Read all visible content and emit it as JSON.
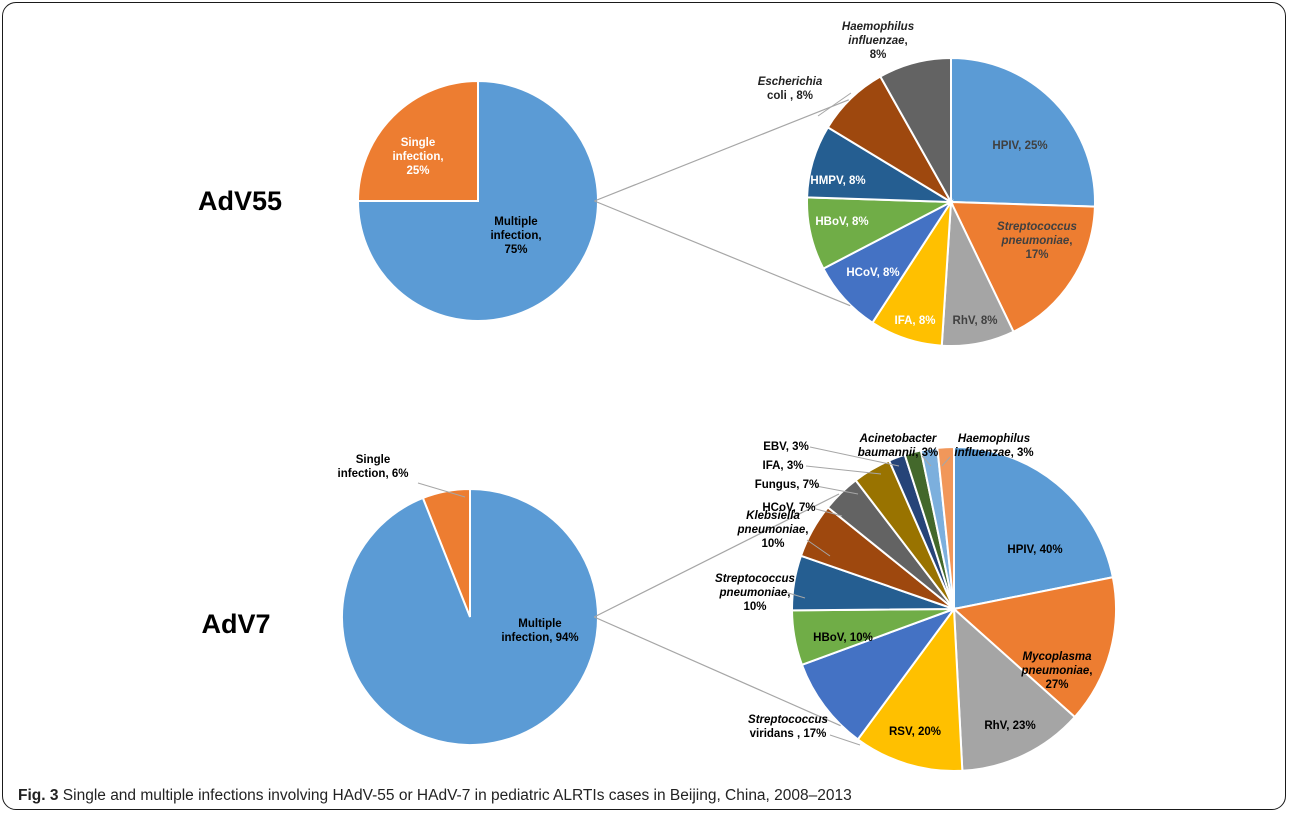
{
  "caption": {
    "label": "Fig. 3",
    "text": "Single and multiple infections involving HAdV-55 or HAdV-7 in pediatric ALRTIs cases in Beijing, China, 2008–2013"
  },
  "colors": {
    "blue": "#5b9bd5",
    "orange": "#ed7d31",
    "gray": "#a5a5a5",
    "gold": "#ffc000",
    "royal": "#4472c4",
    "green": "#70ad47",
    "navy": "#255e91",
    "brown": "#9e480e",
    "darkgray": "#636363",
    "olive": "#997300",
    "darknavy": "#264478",
    "darkgreen": "#43682b",
    "lightblue": "#7cafdd",
    "lightorange": "#f1975a"
  },
  "chart_data": [
    {
      "type": "pie",
      "title": "AdV55",
      "slices": [
        {
          "name": "Single infection",
          "value": 25,
          "label": "Single infection, 25%",
          "color": "orange"
        },
        {
          "name": "Multiple infection",
          "value": 75,
          "label": "Multiple infection, 75%",
          "color": "blue"
        }
      ]
    },
    {
      "type": "pie",
      "title": "",
      "breakdown_of": "Multiple infection",
      "slices": [
        {
          "name": "HPIV",
          "value": 25,
          "label": "HPIV, 25%",
          "color": "blue"
        },
        {
          "name": "Streptococcus pneumoniae",
          "value": 17,
          "label": "Streptococcus pneumoniae, 17%",
          "color": "orange"
        },
        {
          "name": "RhV",
          "value": 8,
          "label": "RhV, 8%",
          "color": "gray"
        },
        {
          "name": "IFA",
          "value": 8,
          "label": "IFA, 8%",
          "color": "gold"
        },
        {
          "name": "HCoV",
          "value": 8,
          "label": "HCoV, 8%",
          "color": "royal"
        },
        {
          "name": "HBoV",
          "value": 8,
          "label": "HBoV, 8%",
          "color": "green"
        },
        {
          "name": "HMPV",
          "value": 8,
          "label": "HMPV, 8%",
          "color": "navy"
        },
        {
          "name": "Escherichia coli",
          "value": 8,
          "label": "Escherichia coli , 8%",
          "color": "brown"
        },
        {
          "name": "Haemophilus influenzae",
          "value": 8,
          "label": "Haemophilus influenzae, 8%",
          "color": "darkgray"
        }
      ]
    },
    {
      "type": "pie",
      "title": "AdV7",
      "slices": [
        {
          "name": "Single infection",
          "value": 6,
          "label": "Single infection, 6%",
          "color": "orange"
        },
        {
          "name": "Multiple infection",
          "value": 94,
          "label": "Multiple infection, 94%",
          "color": "blue"
        }
      ]
    },
    {
      "type": "pie",
      "title": "",
      "breakdown_of": "Multiple infection",
      "slices": [
        {
          "name": "HPIV",
          "value": 40,
          "label": "HPIV, 40%",
          "color": "blue"
        },
        {
          "name": "Mycoplasma pneumoniae",
          "value": 27,
          "label": "Mycoplasma pneumoniae, 27%",
          "color": "orange"
        },
        {
          "name": "RhV",
          "value": 23,
          "label": "RhV, 23%",
          "color": "gray"
        },
        {
          "name": "RSV",
          "value": 20,
          "label": "RSV, 20%",
          "color": "gold"
        },
        {
          "name": "Streptococcus viridans",
          "value": 17,
          "label": "Streptococcus viridans , 17%",
          "color": "royal"
        },
        {
          "name": "HBoV",
          "value": 10,
          "label": "HBoV, 10%",
          "color": "green"
        },
        {
          "name": "Streptococcus pneumoniae",
          "value": 10,
          "label": "Streptococcus pneumoniae, 10%",
          "color": "navy"
        },
        {
          "name": "Klebsiella pneumoniae",
          "value": 10,
          "label": "Klebsiella pneumoniae, 10%",
          "color": "brown"
        },
        {
          "name": "HCoV",
          "value": 7,
          "label": "HCoV, 7%",
          "color": "darkgray"
        },
        {
          "name": "Fungus",
          "value": 7,
          "label": "Fungus, 7%",
          "color": "olive"
        },
        {
          "name": "IFA",
          "value": 3,
          "label": "IFA, 3%",
          "color": "darknavy"
        },
        {
          "name": "EBV",
          "value": 3,
          "label": "EBV, 3%",
          "color": "darkgreen"
        },
        {
          "name": "Acinetobacter baumannii",
          "value": 3,
          "label": "Acinetobacter baumannii, 3%",
          "color": "lightblue"
        },
        {
          "name": "Haemophilus influenzae",
          "value": 3,
          "label": "Haemophilus influenzae, 3%",
          "color": "lightorange"
        }
      ]
    }
  ]
}
